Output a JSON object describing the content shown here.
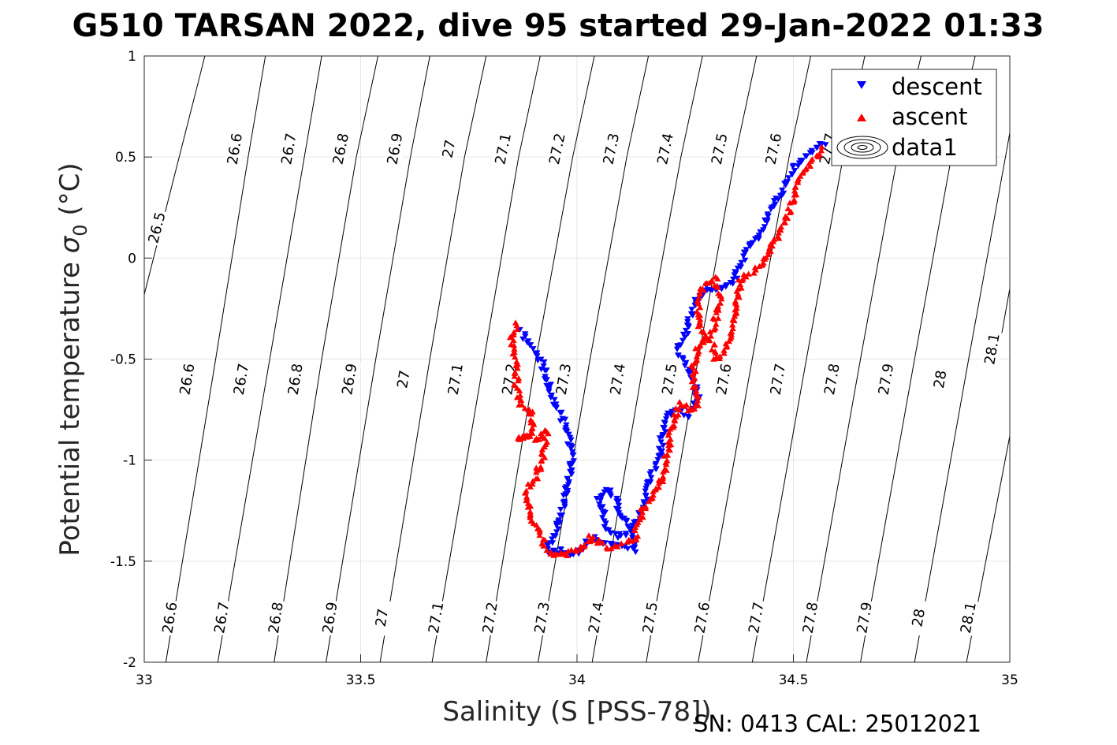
{
  "footer": "SN: 0413  CAL: 25012021",
  "chart_data": {
    "type": "scatter",
    "title": "G510 TARSAN 2022, dive 95 started 29-Jan-2022 01:33",
    "xlabel": "Salinity (S [PSS-78])",
    "ylabel_main": "Potential temperature ",
    "ylabel_sigma": "σ",
    "ylabel_sub": "0",
    "ylabel_unit": " (°C)",
    "xlim": [
      33,
      35
    ],
    "ylim": [
      -2,
      1
    ],
    "x_ticks": [
      {
        "value": 33,
        "label": "33"
      },
      {
        "value": 33.5,
        "label": "33.5"
      },
      {
        "value": 34,
        "label": "34"
      },
      {
        "value": 34.5,
        "label": "34.5"
      },
      {
        "value": 35,
        "label": "35"
      }
    ],
    "y_ticks": [
      {
        "value": 1,
        "label": "1"
      },
      {
        "value": 0.5,
        "label": "0.5"
      },
      {
        "value": 0,
        "label": "0"
      },
      {
        "value": -0.5,
        "label": "-0.5"
      },
      {
        "value": -1,
        "label": "-1"
      },
      {
        "value": -1.5,
        "label": "-1.5"
      },
      {
        "value": -2,
        "label": "-2"
      }
    ],
    "grid": true,
    "legend_position": "top-right",
    "legend": [
      {
        "label": "descent",
        "marker": "triangle-down",
        "color": "#0000ff"
      },
      {
        "label": "ascent",
        "marker": "triangle-up",
        "color": "#ff0000"
      },
      {
        "label": "data1",
        "marker": "contour",
        "color": "#000000"
      }
    ],
    "contours": [
      {
        "level": 26.5,
        "label": "26.5",
        "anchors": [
          [
            33.0,
            -0.18
          ],
          [
            33.14,
            1.0
          ]
        ],
        "label_points": [
          [
            33.03,
            0.15
          ]
        ]
      },
      {
        "level": 26.6,
        "label": "26.6",
        "anchors": [
          [
            33.05,
            -2.0
          ],
          [
            33.165,
            -0.5
          ],
          [
            33.24,
            0.5
          ],
          [
            33.28,
            1.0
          ]
        ],
        "label_points": [
          [
            33.21,
            0.54
          ],
          [
            33.1,
            -0.6
          ],
          [
            33.06,
            -1.78
          ]
        ]
      },
      {
        "level": 26.7,
        "label": "26.7",
        "anchors": [
          [
            33.17,
            -2.0
          ],
          [
            33.29,
            -0.5
          ],
          [
            33.37,
            0.5
          ],
          [
            33.41,
            1.0
          ]
        ],
        "label_points": [
          [
            33.335,
            0.54
          ],
          [
            33.225,
            -0.6
          ],
          [
            33.18,
            -1.78
          ]
        ]
      },
      {
        "level": 26.8,
        "label": "26.8",
        "anchors": [
          [
            33.3,
            -2.0
          ],
          [
            33.41,
            -0.5
          ],
          [
            33.49,
            0.5
          ],
          [
            33.54,
            1.0
          ]
        ],
        "label_points": [
          [
            33.455,
            0.54
          ],
          [
            33.35,
            -0.6
          ],
          [
            33.305,
            -1.78
          ]
        ]
      },
      {
        "level": 26.9,
        "label": "26.9",
        "anchors": [
          [
            33.42,
            -2.0
          ],
          [
            33.535,
            -0.5
          ],
          [
            33.615,
            0.5
          ],
          [
            33.66,
            1.0
          ]
        ],
        "label_points": [
          [
            33.58,
            0.54
          ],
          [
            33.475,
            -0.6
          ],
          [
            33.43,
            -1.78
          ]
        ]
      },
      {
        "level": 27.0,
        "label": "27",
        "anchors": [
          [
            33.545,
            -2.0
          ],
          [
            33.66,
            -0.5
          ],
          [
            33.74,
            0.5
          ],
          [
            33.79,
            1.0
          ]
        ],
        "label_points": [
          [
            33.705,
            0.54
          ],
          [
            33.6,
            -0.6
          ],
          [
            33.55,
            -1.78
          ]
        ]
      },
      {
        "level": 27.1,
        "label": "27.1",
        "anchors": [
          [
            33.665,
            -2.0
          ],
          [
            33.785,
            -0.5
          ],
          [
            33.865,
            0.5
          ],
          [
            33.915,
            1.0
          ]
        ],
        "label_points": [
          [
            33.83,
            0.54
          ],
          [
            33.72,
            -0.6
          ],
          [
            33.675,
            -1.78
          ]
        ]
      },
      {
        "level": 27.2,
        "label": "27.2",
        "anchors": [
          [
            33.79,
            -2.0
          ],
          [
            33.905,
            -0.5
          ],
          [
            33.99,
            0.5
          ],
          [
            34.04,
            1.0
          ]
        ],
        "label_points": [
          [
            33.955,
            0.54
          ],
          [
            33.845,
            -0.6
          ],
          [
            33.8,
            -1.78
          ]
        ]
      },
      {
        "level": 27.3,
        "label": "27.3",
        "anchors": [
          [
            33.91,
            -2.0
          ],
          [
            34.03,
            -0.5
          ],
          [
            34.115,
            0.5
          ],
          [
            34.165,
            1.0
          ]
        ],
        "label_points": [
          [
            34.08,
            0.54
          ],
          [
            33.97,
            -0.6
          ],
          [
            33.92,
            -1.78
          ]
        ]
      },
      {
        "level": 27.4,
        "label": "27.4",
        "anchors": [
          [
            34.035,
            -2.0
          ],
          [
            34.155,
            -0.5
          ],
          [
            34.24,
            0.5
          ],
          [
            34.29,
            1.0
          ]
        ],
        "label_points": [
          [
            34.205,
            0.54
          ],
          [
            34.095,
            -0.6
          ],
          [
            34.045,
            -1.78
          ]
        ]
      },
      {
        "level": 27.5,
        "label": "27.5",
        "anchors": [
          [
            34.16,
            -2.0
          ],
          [
            34.28,
            -0.5
          ],
          [
            34.365,
            0.5
          ],
          [
            34.415,
            1.0
          ]
        ],
        "label_points": [
          [
            34.33,
            0.54
          ],
          [
            34.215,
            -0.6
          ],
          [
            34.17,
            -1.78
          ]
        ]
      },
      {
        "level": 27.6,
        "label": "27.6",
        "anchors": [
          [
            34.28,
            -2.0
          ],
          [
            34.405,
            -0.5
          ],
          [
            34.49,
            0.5
          ],
          [
            34.54,
            1.0
          ]
        ],
        "label_points": [
          [
            34.455,
            0.54
          ],
          [
            34.34,
            -0.6
          ],
          [
            34.29,
            -1.78
          ]
        ]
      },
      {
        "level": 27.7,
        "label": "27.7",
        "anchors": [
          [
            34.405,
            -2.0
          ],
          [
            34.53,
            -0.5
          ],
          [
            34.615,
            0.5
          ],
          [
            34.665,
            1.0
          ]
        ],
        "label_points": [
          [
            34.58,
            0.54
          ],
          [
            34.465,
            -0.6
          ],
          [
            34.415,
            -1.78
          ]
        ]
      },
      {
        "level": 27.8,
        "label": "27.8",
        "anchors": [
          [
            34.53,
            -2.0
          ],
          [
            34.655,
            -0.5
          ],
          [
            34.74,
            0.5
          ],
          [
            34.795,
            1.0
          ]
        ],
        "label_points": [
          [
            34.59,
            -0.6
          ],
          [
            34.54,
            -1.78
          ]
        ]
      },
      {
        "level": 27.9,
        "label": "27.9",
        "anchors": [
          [
            34.655,
            -2.0
          ],
          [
            34.78,
            -0.5
          ],
          [
            34.865,
            0.5
          ],
          [
            34.92,
            1.0
          ]
        ],
        "label_points": [
          [
            34.715,
            -0.6
          ],
          [
            34.665,
            -1.78
          ]
        ]
      },
      {
        "level": 28.0,
        "label": "28",
        "anchors": [
          [
            34.78,
            -2.0
          ],
          [
            34.905,
            -0.5
          ],
          [
            34.99,
            0.5
          ],
          [
            35.0,
            0.62
          ]
        ],
        "label_points": [
          [
            34.84,
            -0.6
          ],
          [
            34.79,
            -1.78
          ]
        ]
      },
      {
        "level": 28.1,
        "label": "28.1",
        "anchors": [
          [
            34.9,
            -2.0
          ],
          [
            35.0,
            -0.88
          ]
        ],
        "label_points": [
          [
            34.96,
            -0.45
          ],
          [
            34.905,
            -1.78
          ]
        ]
      },
      {
        "level": 28.2,
        "label": "",
        "anchors": [
          [
            34.975,
            -0.45
          ],
          [
            35.0,
            -0.15
          ],
          [
            35.0,
            0.12
          ]
        ],
        "label_points": []
      }
    ],
    "descent_path": [
      [
        34.57,
        0.57
      ],
      [
        34.53,
        0.5
      ],
      [
        34.5,
        0.44
      ],
      [
        34.48,
        0.35
      ],
      [
        34.45,
        0.25
      ],
      [
        34.42,
        0.1
      ],
      [
        34.39,
        0.03
      ],
      [
        34.37,
        -0.08
      ],
      [
        34.36,
        -0.12
      ],
      [
        34.33,
        -0.15
      ],
      [
        34.3,
        -0.15
      ],
      [
        34.28,
        -0.2
      ],
      [
        34.26,
        -0.3
      ],
      [
        34.25,
        -0.4
      ],
      [
        34.23,
        -0.45
      ],
      [
        34.25,
        -0.52
      ],
      [
        34.27,
        -0.6
      ],
      [
        34.28,
        -0.7
      ],
      [
        34.26,
        -0.78
      ],
      [
        34.23,
        -0.76
      ],
      [
        34.21,
        -0.78
      ],
      [
        34.2,
        -0.85
      ],
      [
        34.19,
        -0.98
      ],
      [
        34.17,
        -1.1
      ],
      [
        34.16,
        -1.18
      ],
      [
        34.15,
        -1.25
      ],
      [
        34.14,
        -1.3
      ],
      [
        34.12,
        -1.36
      ],
      [
        34.09,
        -1.38
      ],
      [
        34.07,
        -1.35
      ],
      [
        34.06,
        -1.25
      ],
      [
        34.05,
        -1.18
      ],
      [
        34.07,
        -1.14
      ],
      [
        34.09,
        -1.2
      ],
      [
        34.1,
        -1.28
      ],
      [
        34.12,
        -1.32
      ],
      [
        34.13,
        -1.38
      ],
      [
        34.13,
        -1.45
      ],
      [
        34.1,
        -1.43
      ],
      [
        34.07,
        -1.42
      ],
      [
        34.04,
        -1.39
      ],
      [
        34.02,
        -1.42
      ],
      [
        34.0,
        -1.46
      ],
      [
        33.98,
        -1.46
      ],
      [
        33.96,
        -1.45
      ],
      [
        33.94,
        -1.46
      ],
      [
        33.93,
        -1.43
      ],
      [
        33.95,
        -1.38
      ],
      [
        33.96,
        -1.3
      ],
      [
        33.97,
        -1.22
      ],
      [
        33.98,
        -1.1
      ],
      [
        33.99,
        -1.0
      ],
      [
        33.98,
        -0.88
      ],
      [
        33.96,
        -0.76
      ],
      [
        33.94,
        -0.68
      ],
      [
        33.93,
        -0.6
      ],
      [
        33.92,
        -0.52
      ],
      [
        33.9,
        -0.45
      ],
      [
        33.88,
        -0.4
      ],
      [
        33.87,
        -0.35
      ]
    ],
    "ascent_path": [
      [
        33.86,
        -0.33
      ],
      [
        33.85,
        -0.4
      ],
      [
        33.86,
        -0.5
      ],
      [
        33.86,
        -0.62
      ],
      [
        33.87,
        -0.72
      ],
      [
        33.89,
        -0.76
      ],
      [
        33.9,
        -0.8
      ],
      [
        33.89,
        -0.88
      ],
      [
        33.86,
        -0.9
      ],
      [
        33.88,
        -0.88
      ],
      [
        33.91,
        -0.9
      ],
      [
        33.93,
        -0.85
      ],
      [
        33.92,
        -1.0
      ],
      [
        33.9,
        -1.1
      ],
      [
        33.88,
        -1.15
      ],
      [
        33.89,
        -1.25
      ],
      [
        33.9,
        -1.32
      ],
      [
        33.92,
        -1.38
      ],
      [
        33.93,
        -1.44
      ],
      [
        33.95,
        -1.47
      ],
      [
        33.98,
        -1.46
      ],
      [
        34.0,
        -1.44
      ],
      [
        34.02,
        -1.42
      ],
      [
        34.03,
        -1.38
      ],
      [
        34.05,
        -1.4
      ],
      [
        34.07,
        -1.43
      ],
      [
        34.1,
        -1.42
      ],
      [
        34.13,
        -1.4
      ],
      [
        34.14,
        -1.34
      ],
      [
        34.15,
        -1.25
      ],
      [
        34.17,
        -1.18
      ],
      [
        34.19,
        -1.12
      ],
      [
        34.2,
        -1.05
      ],
      [
        34.21,
        -0.95
      ],
      [
        34.22,
        -0.82
      ],
      [
        34.24,
        -0.72
      ],
      [
        34.26,
        -0.75
      ],
      [
        34.28,
        -0.72
      ],
      [
        34.27,
        -0.62
      ],
      [
        34.27,
        -0.52
      ],
      [
        34.28,
        -0.44
      ],
      [
        34.3,
        -0.4
      ],
      [
        34.28,
        -0.32
      ],
      [
        34.28,
        -0.22
      ],
      [
        34.29,
        -0.15
      ],
      [
        34.3,
        -0.12
      ],
      [
        34.32,
        -0.1
      ],
      [
        34.33,
        -0.2
      ],
      [
        34.32,
        -0.3
      ],
      [
        34.31,
        -0.4
      ],
      [
        34.32,
        -0.5
      ],
      [
        34.34,
        -0.46
      ],
      [
        34.35,
        -0.4
      ],
      [
        34.36,
        -0.32
      ],
      [
        34.37,
        -0.2
      ],
      [
        34.38,
        -0.1
      ],
      [
        34.42,
        -0.05
      ],
      [
        34.45,
        0.05
      ],
      [
        34.48,
        0.18
      ],
      [
        34.5,
        0.3
      ],
      [
        34.52,
        0.42
      ],
      [
        34.55,
        0.5
      ],
      [
        34.57,
        0.55
      ]
    ]
  }
}
